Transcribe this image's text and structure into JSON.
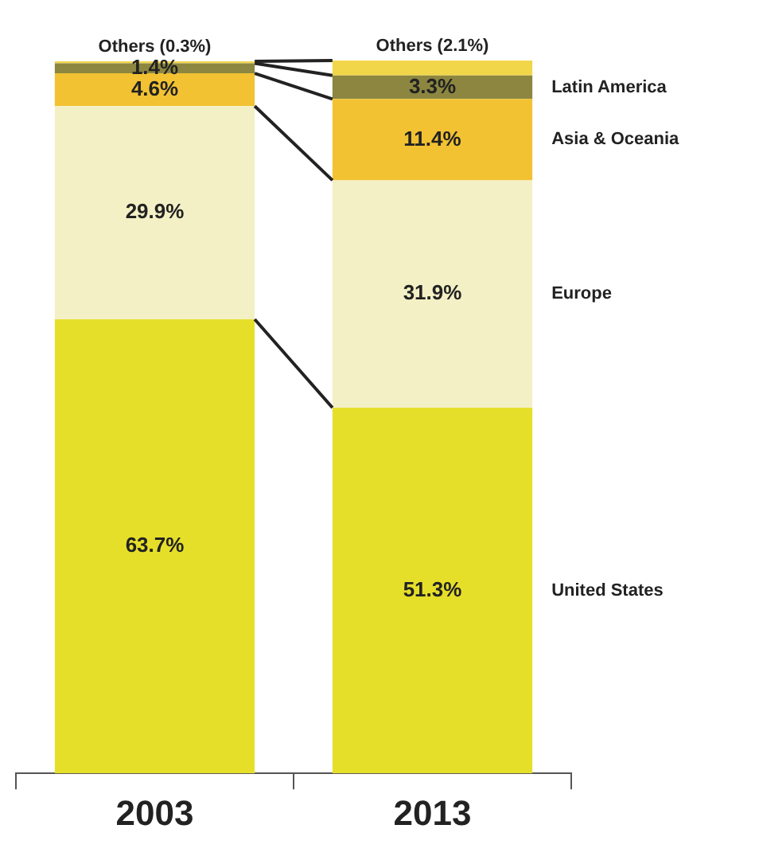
{
  "chart_data": {
    "type": "bar",
    "stacked": true,
    "categories": [
      "2003",
      "2013"
    ],
    "legend": false,
    "tick_labels": "x",
    "series": [
      {
        "name": "United States",
        "color": "#e6df2a",
        "values": [
          63.7,
          51.3
        ],
        "value_labels": [
          "63.7%",
          "51.3%"
        ]
      },
      {
        "name": "Europe",
        "color": "#f4f0c6",
        "values": [
          29.9,
          31.9
        ],
        "value_labels": [
          "29.9%",
          "31.9%"
        ]
      },
      {
        "name": "Asia & Oceania",
        "color": "#f2c232",
        "values": [
          4.6,
          11.4
        ],
        "value_labels": [
          "4.6%",
          "11.4%"
        ]
      },
      {
        "name": "Latin America",
        "color": "#8c8640",
        "values": [
          1.4,
          3.3
        ],
        "value_labels": [
          "1.4%",
          "3.3%"
        ]
      },
      {
        "color": "#f2d64a",
        "values": [
          0.3,
          2.1
        ],
        "value_labels": [
          "Others (0.3%)",
          "Others (2.1%)"
        ]
      }
    ]
  }
}
